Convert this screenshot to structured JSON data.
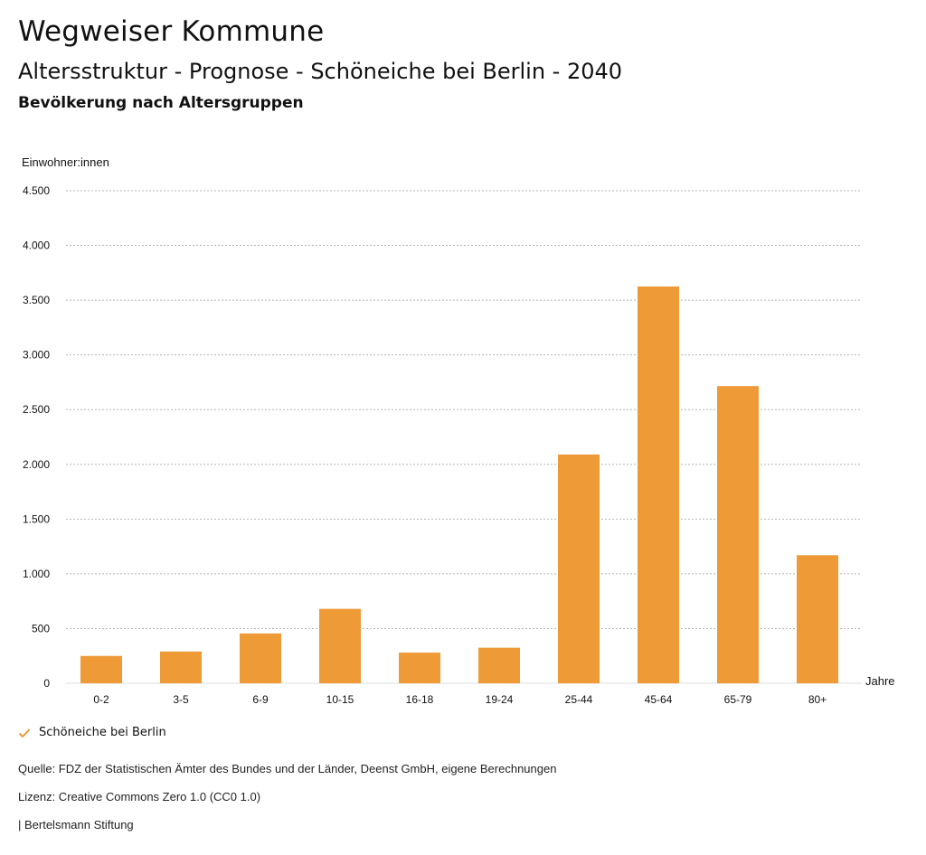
{
  "header": {
    "title": "Wegweiser Kommune",
    "subtitle": "Altersstruktur - Prognose - Schöneiche bei Berlin - 2040",
    "subsubtitle": "Bevölkerung nach Altersgruppen"
  },
  "colors": {
    "bar": "#ED9A37",
    "grid": "#b5b5b5",
    "axis_text": "#111111"
  },
  "chart_data": {
    "type": "bar",
    "ylabel": "Einwohner:innen",
    "xlabel": "Jahre",
    "categories": [
      "0-2",
      "3-5",
      "6-9",
      "10-15",
      "16-18",
      "19-24",
      "25-44",
      "45-64",
      "65-79",
      "80+"
    ],
    "series": [
      {
        "name": "Schöneiche bei Berlin",
        "values": [
          250,
          290,
          455,
          680,
          280,
          325,
          2090,
          3625,
          2715,
          1170
        ]
      }
    ],
    "ylim": [
      0,
      4500
    ],
    "yticks": [
      0,
      500,
      1000,
      1500,
      2000,
      2500,
      3000,
      3500,
      4000,
      4500
    ],
    "ytick_labels": [
      "0",
      "500",
      "1.000",
      "1.500",
      "2.000",
      "2.500",
      "3.000",
      "3.500",
      "4.000",
      "4.500"
    ],
    "grid": true,
    "legend_position": "bottom-left"
  },
  "legend": {
    "label": "Schöneiche bei Berlin",
    "icon": "checkmark-icon"
  },
  "footer": {
    "source": "Quelle: FDZ der Statistischen Ämter des Bundes und der Länder, Deenst GmbH, eigene Berechnungen",
    "license": "Lizenz: Creative Commons Zero 1.0 (CC0 1.0)",
    "publisher": "| Bertelsmann Stiftung"
  }
}
